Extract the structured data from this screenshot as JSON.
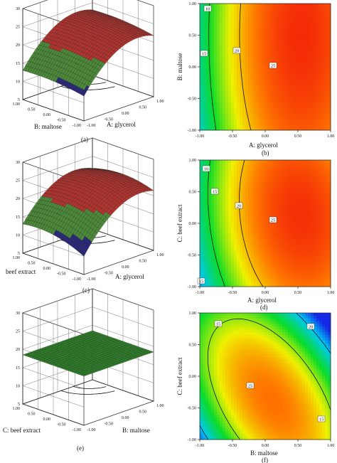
{
  "chart_data": [
    {
      "type": "surface3d",
      "panel": "(a)",
      "xlabel": "A: glycerol",
      "ylabel": "B: maltose",
      "z_ticks": [
        "5",
        "10",
        "15",
        "20",
        "25",
        "30"
      ],
      "x_ticks": [
        "-1.00",
        "-0.50",
        "0.00",
        "0.50",
        "1.00"
      ],
      "y_ticks": [
        "-1.00",
        "-0.50",
        "0.00",
        "0.50",
        "1.00"
      ],
      "zlim": [
        5,
        30
      ],
      "model": {
        "const": 22.5,
        "x": 5.0,
        "y": 0.6,
        "xx": -4.5,
        "yy": -0.6,
        "xy": 0.0
      },
      "surface_palette": [
        "#2b2a7a",
        "#4c8a3a",
        "#b3342e",
        "#c42a1d"
      ],
      "floor_color": "#ffee00"
    },
    {
      "type": "contour",
      "panel": "(b)",
      "xlabel": "A: glycerol",
      "ylabel": "B: maltose",
      "x_ticks": [
        "-1.00",
        "-0.50",
        "0.00",
        "0.50",
        "1.00"
      ],
      "y_ticks": [
        "-1.00",
        "-0.50",
        "0.00",
        "0.50",
        "1.00"
      ],
      "xlim": [
        -1,
        1
      ],
      "ylim": [
        -1,
        1
      ],
      "levels": [
        10,
        15,
        20,
        25
      ],
      "level_labels": [
        "10",
        "15",
        "20",
        "25"
      ],
      "model": {
        "const": 22.5,
        "x": 5.0,
        "y": 0.6,
        "xx": -4.5,
        "yy": -0.6,
        "xy": 0.0
      },
      "color_range": [
        7,
        25
      ]
    },
    {
      "type": "surface3d",
      "panel": "(c)",
      "xlabel": "A: glycerol",
      "ylabel": "beef extract",
      "z_ticks": [
        "5",
        "10",
        "15",
        "20",
        "25",
        "30"
      ],
      "x_ticks": [
        "-1.00",
        "-0.50",
        "0.00",
        "0.50",
        "1.00"
      ],
      "y_ticks": [
        "-1.00",
        "-0.50",
        "0.00",
        "0.50",
        "1.00"
      ],
      "zlim": [
        5,
        30
      ],
      "model": {
        "const": 22.5,
        "x": 5.0,
        "y": 0.8,
        "xx": -4.5,
        "yy": -1.5,
        "xy": -0.7
      },
      "surface_palette": [
        "#2b2a7a",
        "#4c8a3a",
        "#b3342e",
        "#c42a1d"
      ],
      "floor_color": "#ffee00"
    },
    {
      "type": "contour",
      "panel": "(d)",
      "xlabel": "A: glycerol",
      "ylabel": "C: beef extract",
      "x_ticks": [
        "-1.00",
        "-0.50",
        "0.00",
        "0.50",
        "1.00"
      ],
      "y_ticks": [
        "-1.00",
        "-0.50",
        "0.00",
        "0.50",
        "1.00"
      ],
      "xlim": [
        -1,
        1
      ],
      "ylim": [
        -1,
        1
      ],
      "levels": [
        10,
        15,
        20,
        25,
        15
      ],
      "level_labels": [
        "10",
        "15",
        "20",
        "25",
        "15"
      ],
      "model": {
        "const": 22.5,
        "x": 5.0,
        "y": 0.8,
        "xx": -4.5,
        "yy": -1.5,
        "xy": -0.7
      },
      "color_range": [
        7,
        25
      ]
    },
    {
      "type": "surface3d",
      "panel": "(e)",
      "xlabel": "B: maltose",
      "ylabel": "C: beef extract",
      "z_ticks": [
        "5",
        "10",
        "15",
        "20",
        "25",
        "30"
      ],
      "x_ticks": [
        "-1.00",
        "-0.50",
        "0.00",
        "0.50",
        "1.00"
      ],
      "y_ticks": [
        "-1.00",
        "-0.50",
        "0.00",
        "0.50",
        "1.00"
      ],
      "zlim": [
        5,
        30
      ],
      "model": {
        "const": 18.5,
        "x": 0.0,
        "y": 0.0,
        "xx": 0.0,
        "yy": 0.0,
        "xy": 0.0
      },
      "surface_palette": [
        "#1c5a1c",
        "#2f8a2a",
        "#3fa03a",
        "#2a6e26"
      ],
      "floor_color": "#ffee00"
    },
    {
      "type": "contour",
      "panel": "(f)",
      "xlabel": "B: maltose",
      "ylabel": "C: beef extract",
      "x_ticks": [
        "-1.00",
        "-0.50",
        "0.00",
        "0.50",
        "1.00"
      ],
      "y_ticks": [
        "-1.00",
        "-0.50",
        "0.00",
        "0.50",
        "1.00"
      ],
      "xlim": [
        -1,
        1
      ],
      "ylim": [
        -1,
        1
      ],
      "levels": [
        15,
        20,
        25,
        15
      ],
      "level_labels": [
        "15",
        "20",
        "25",
        "15"
      ],
      "model": {
        "const": 23.3,
        "x": -0.5,
        "y": -1.9,
        "xx": -5.2,
        "yy": -3.0,
        "xy": -4.2
      },
      "color_range": [
        12,
        26
      ]
    }
  ]
}
